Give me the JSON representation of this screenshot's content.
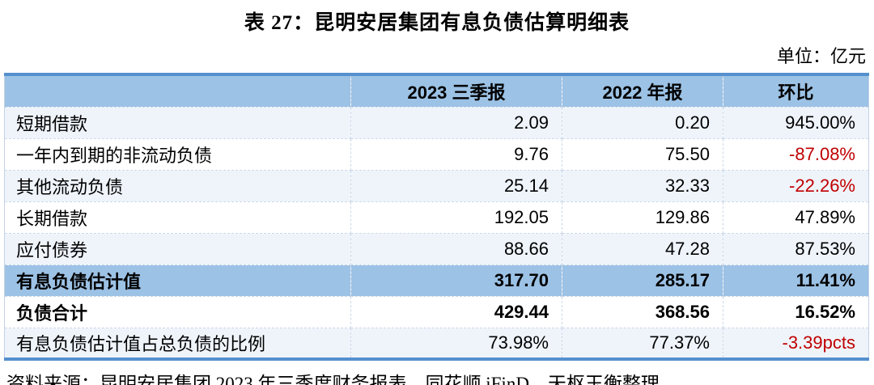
{
  "title": "表 27：昆明安居集团有息负债估算明细表",
  "unit_label": "单位：亿元",
  "colors": {
    "accent": "#5590CE",
    "headerBg": "#9CC2E5",
    "altBg": "#EFF4FB",
    "negative": "#C00000"
  },
  "table": {
    "columns": [
      "",
      "2023 三季报",
      "2022 年报",
      "环比"
    ],
    "rows": [
      {
        "label": "短期借款",
        "v2023": "2.09",
        "v2022": "0.20",
        "change": "945.00%",
        "change_negative": false,
        "variant": "light",
        "bold": false
      },
      {
        "label": "一年内到期的非流动负债",
        "v2023": "9.76",
        "v2022": "75.50",
        "change": "-87.08%",
        "change_negative": true,
        "variant": "white",
        "bold": false
      },
      {
        "label": "其他流动负债",
        "v2023": "25.14",
        "v2022": "32.33",
        "change": "-22.26%",
        "change_negative": true,
        "variant": "light",
        "bold": false
      },
      {
        "label": "长期借款",
        "v2023": "192.05",
        "v2022": "129.86",
        "change": "47.89%",
        "change_negative": false,
        "variant": "white",
        "bold": false
      },
      {
        "label": "应付债券",
        "v2023": "88.66",
        "v2022": "47.28",
        "change": "87.53%",
        "change_negative": false,
        "variant": "light",
        "bold": false
      },
      {
        "label": "有息负债估计值",
        "v2023": "317.70",
        "v2022": "285.17",
        "change": "11.41%",
        "change_negative": false,
        "variant": "highlight",
        "bold": true
      },
      {
        "label": "负债合计",
        "v2023": "429.44",
        "v2022": "368.56",
        "change": "16.52%",
        "change_negative": false,
        "variant": "white",
        "bold": true
      },
      {
        "label": "有息负债估计值占总负债的比例",
        "v2023": "73.98%",
        "v2022": "77.37%",
        "change": "-3.39pcts",
        "change_negative": true,
        "variant": "light",
        "bold": false
      }
    ]
  },
  "source_note": "资料来源：昆明安居集团 2023 年三季度财务报表，同花顺 iFinD，天枢玉衡整理。"
}
